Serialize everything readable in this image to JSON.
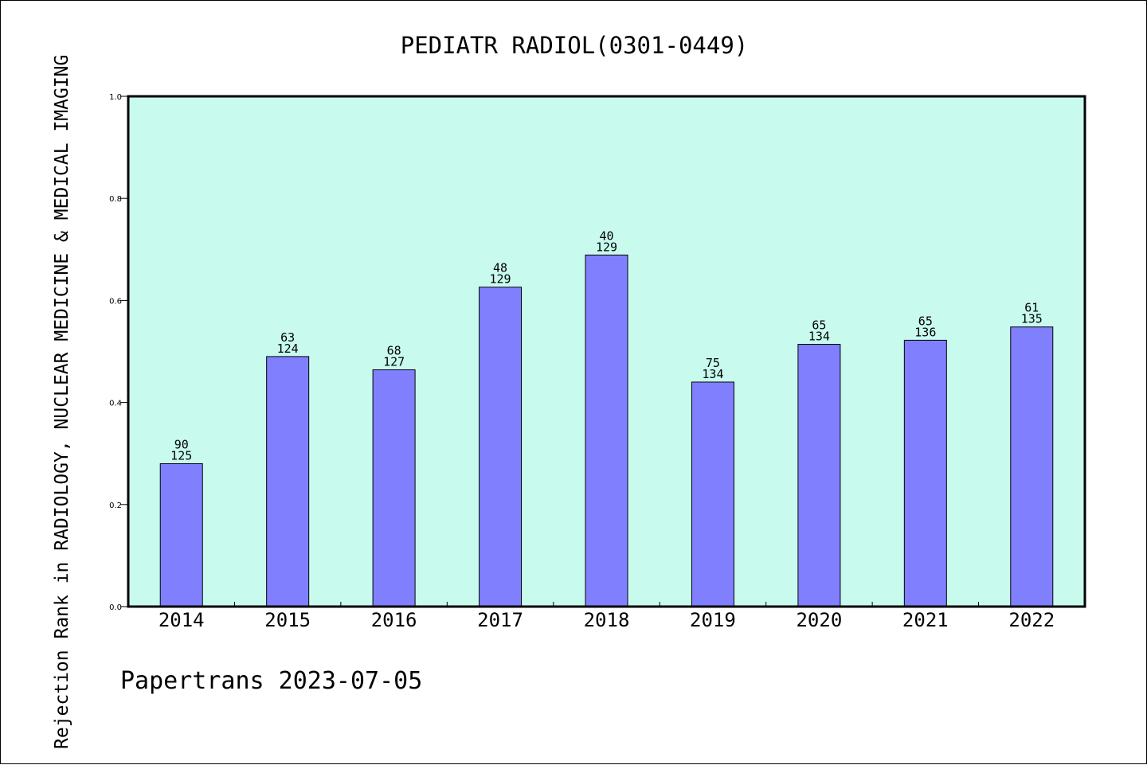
{
  "chart_data": {
    "type": "bar",
    "title": "PEDIATR RADIOL(0301-0449)",
    "ylabel": "Rejection Rank in RADIOLOGY, NUCLEAR MEDICINE & MEDICAL IMAGING",
    "xlabel": "",
    "ylim": [
      0,
      1.0
    ],
    "yticks": [
      "0.0",
      "0.2",
      "0.4",
      "0.6",
      "0.8",
      "1.0"
    ],
    "categories": [
      "2014",
      "2015",
      "2016",
      "2017",
      "2018",
      "2019",
      "2020",
      "2021",
      "2022"
    ],
    "values": [
      0.28,
      0.49,
      0.464,
      0.626,
      0.689,
      0.44,
      0.514,
      0.522,
      0.548
    ],
    "rank_labels": [
      "90",
      "63",
      "68",
      "48",
      "40",
      "75",
      "65",
      "65",
      "61"
    ],
    "total_labels": [
      "125",
      "124",
      "127",
      "129",
      "129",
      "134",
      "134",
      "136",
      "135"
    ],
    "grid": false,
    "colors": {
      "plot_background": "#c8faee",
      "bar_fill": "#8080ff",
      "bar_edge": "#000000"
    }
  },
  "footer": {
    "text": "Papertrans 2023-07-05"
  }
}
